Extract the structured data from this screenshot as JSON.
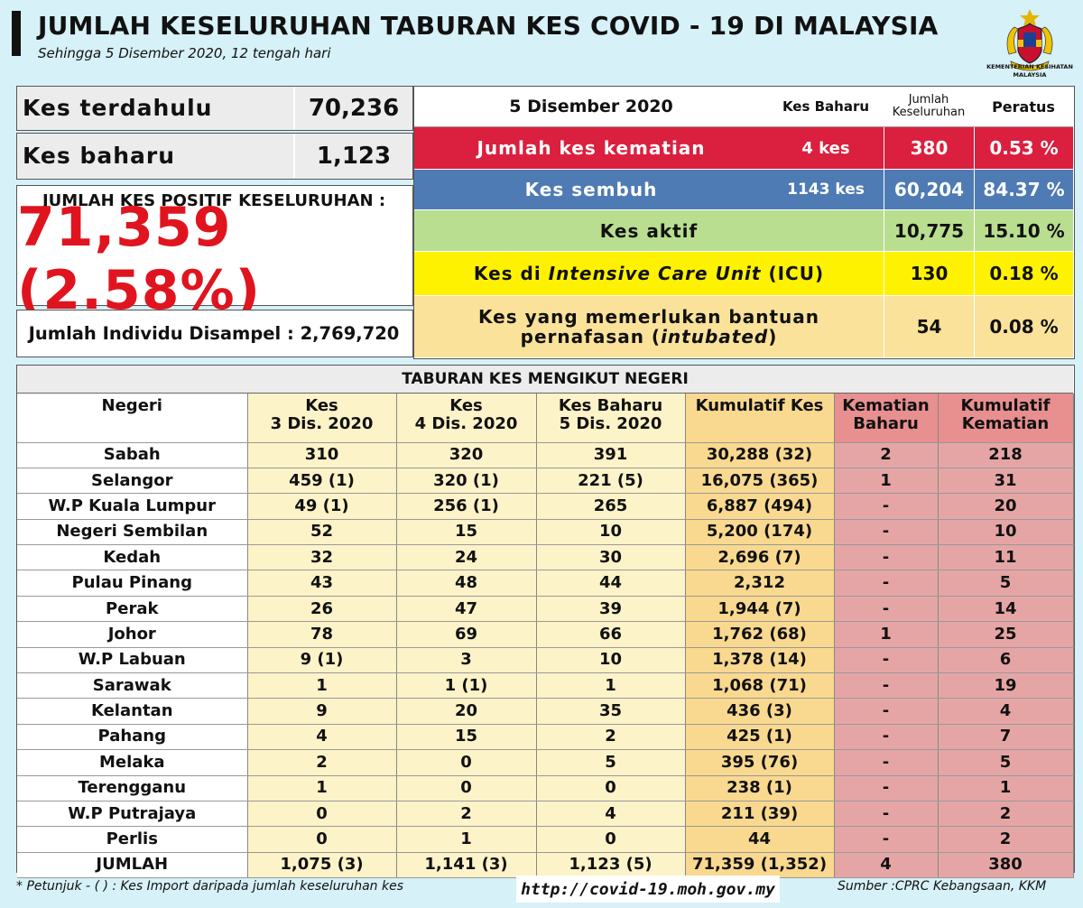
{
  "header": {
    "title": "JUMLAH KESELURUHAN TABURAN KES COVID - 19 DI MALAYSIA",
    "subtitle": "Sehingga 5 Disember 2020, 12 tengah hari",
    "agency_line1": "KEMENTERIAN KESIHATAN",
    "agency_line2": "MALAYSIA"
  },
  "left": {
    "prev_label": "Kes terdahulu",
    "prev_value": "70,236",
    "new_label": "Kes baharu",
    "new_value": "1,123",
    "total_label": "JUMLAH KES POSITIF KESELURUHAN :",
    "total_value": "71,359 (2.58%)",
    "sampled": "Jumlah Individu Disampel : 2,769,720"
  },
  "summary": {
    "date": "5 Disember 2020",
    "col_new": "Kes Baharu",
    "col_total": "Jumlah Keseluruhan",
    "col_pct": "Peratus",
    "death": {
      "label": "Jumlah kes kematian",
      "new": "4 kes",
      "total": "380",
      "pct": "0.53 %"
    },
    "recovered": {
      "label": "Kes sembuh",
      "new": "1143 kes",
      "total": "60,204",
      "pct": "84.37 %"
    },
    "active": {
      "label": "Kes aktif",
      "total": "10,775",
      "pct": "15.10 %"
    },
    "icu": {
      "label_pre": "Kes di ",
      "label_it": "Intensive Care Unit",
      "label_post": " (ICU)",
      "total": "130",
      "pct": "0.18 %"
    },
    "intubated": {
      "label_line1": "Kes yang memerlukan bantuan",
      "label_pre": "pernafasan (",
      "label_it": "intubated",
      "label_post": ")",
      "total": "54",
      "pct": "0.08 %"
    },
    "colors": {
      "death": "#db1f3e",
      "recovered": "#4e7bb4",
      "active": "#b9de8f",
      "icu": "#fff200",
      "intubated": "#fbe29a"
    }
  },
  "table": {
    "title": "TABURAN KES MENGIKUT NEGERI",
    "headers": [
      "Negeri",
      "Kes\n3 Dis. 2020",
      "Kes\n4 Dis. 2020",
      "Kes Baharu\n5 Dis. 2020",
      "Kumulatif Kes",
      "Kematian\nBaharu",
      "Kumulatif\nKematian"
    ],
    "rows": [
      [
        "Sabah",
        "310",
        "320",
        "391",
        "30,288 (32)",
        "2",
        "218"
      ],
      [
        "Selangor",
        "459 (1)",
        "320 (1)",
        "221 (5)",
        "16,075 (365)",
        "1",
        "31"
      ],
      [
        "W.P Kuala Lumpur",
        "49 (1)",
        "256 (1)",
        "265",
        "6,887 (494)",
        "-",
        "20"
      ],
      [
        "Negeri Sembilan",
        "52",
        "15",
        "10",
        "5,200 (174)",
        "-",
        "10"
      ],
      [
        "Kedah",
        "32",
        "24",
        "30",
        "2,696 (7)",
        "-",
        "11"
      ],
      [
        "Pulau Pinang",
        "43",
        "48",
        "44",
        "2,312",
        "-",
        "5"
      ],
      [
        "Perak",
        "26",
        "47",
        "39",
        "1,944 (7)",
        "-",
        "14"
      ],
      [
        "Johor",
        "78",
        "69",
        "66",
        "1,762 (68)",
        "1",
        "25"
      ],
      [
        "W.P Labuan",
        "9 (1)",
        "3",
        "10",
        "1,378 (14)",
        "-",
        "6"
      ],
      [
        "Sarawak",
        "1",
        "1 (1)",
        "1",
        "1,068 (71)",
        "-",
        "19"
      ],
      [
        "Kelantan",
        "9",
        "20",
        "35",
        "436 (3)",
        "-",
        "4"
      ],
      [
        "Pahang",
        "4",
        "15",
        "2",
        "425 (1)",
        "-",
        "7"
      ],
      [
        "Melaka",
        "2",
        "0",
        "5",
        "395 (76)",
        "-",
        "5"
      ],
      [
        "Terengganu",
        "1",
        "0",
        "0",
        "238 (1)",
        "-",
        "1"
      ],
      [
        "W.P Putrajaya",
        "0",
        "2",
        "4",
        "211 (39)",
        "-",
        "2"
      ],
      [
        "Perlis",
        "0",
        "1",
        "0",
        "44",
        "-",
        "2"
      ],
      [
        "JUMLAH",
        "1,075 (3)",
        "1,141 (3)",
        "1,123 (5)",
        "71,359 (1,352)",
        "4",
        "380"
      ]
    ]
  },
  "footer": {
    "note": "* Petunjuk  - (  ) : Kes Import daripada jumlah keseluruhan kes",
    "url": "http://covid-19.moh.gov.my",
    "source": "Sumber :CPRC Kebangsaan,  KKM"
  }
}
